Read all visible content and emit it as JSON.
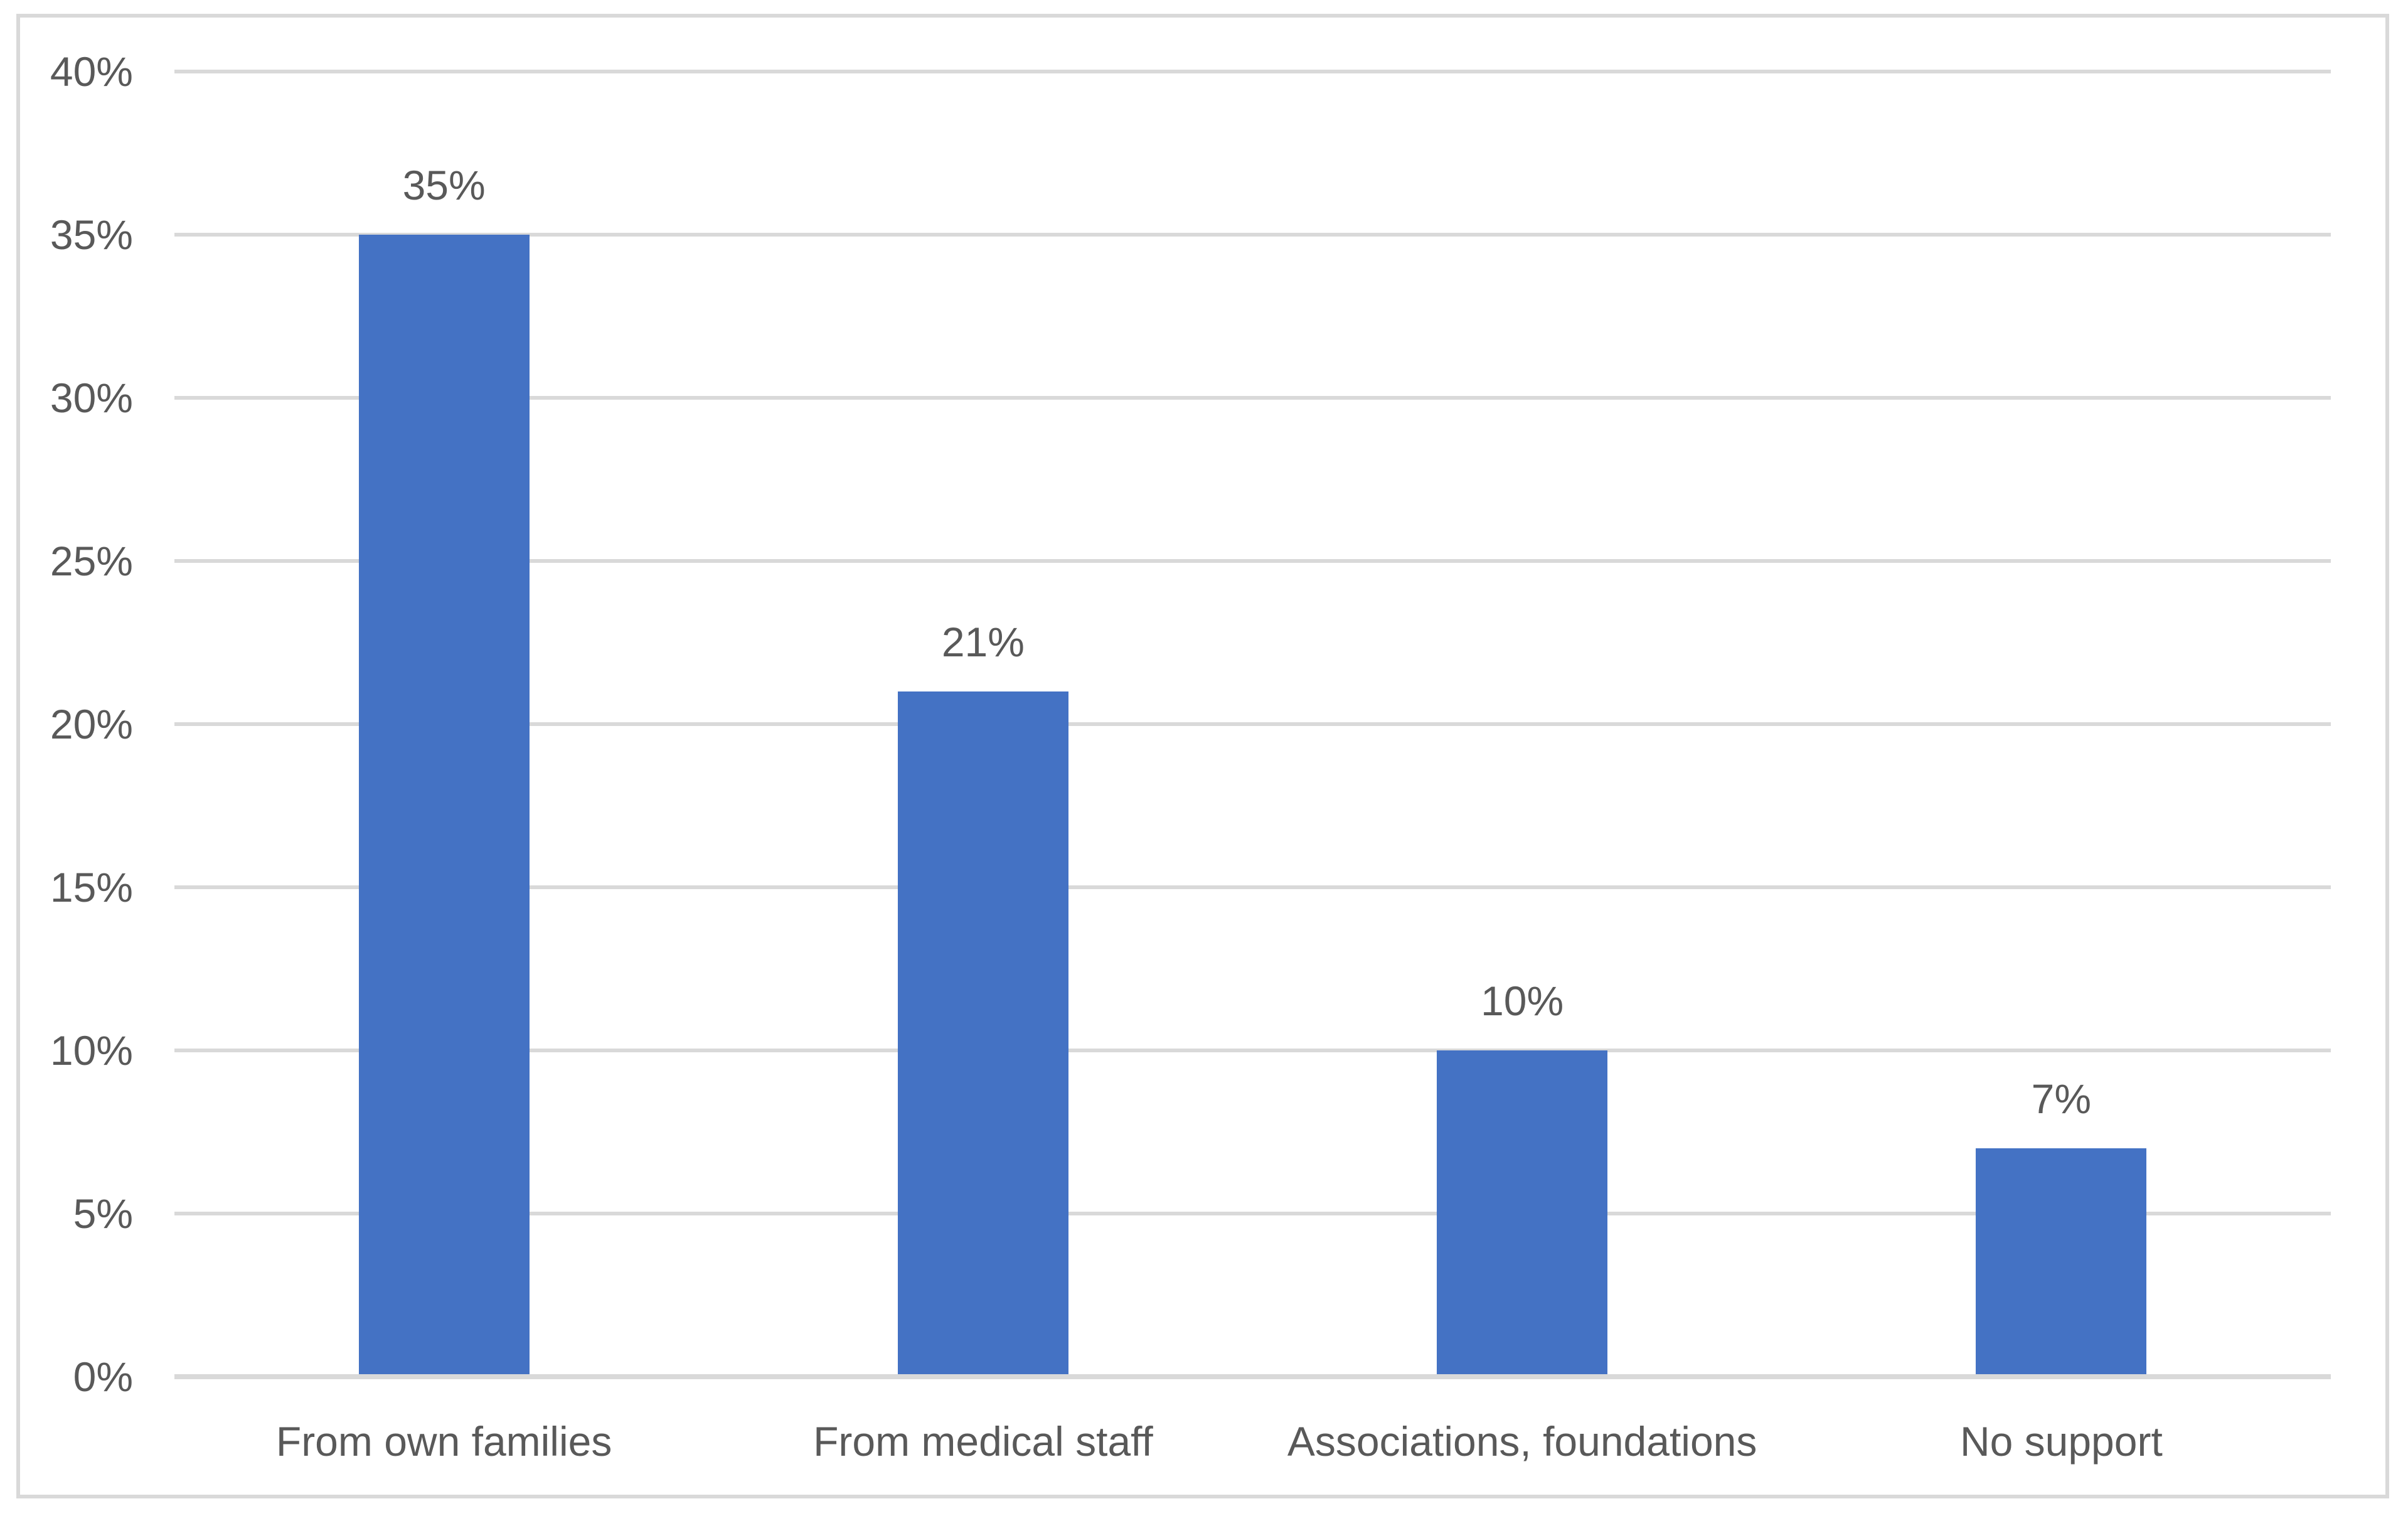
{
  "chart_data": {
    "type": "bar",
    "title": "",
    "xlabel": "",
    "ylabel": "",
    "categories": [
      "From own families",
      "From medical staff",
      "Associations, foundations",
      "No support"
    ],
    "values": [
      35,
      21,
      10,
      7
    ],
    "data_labels": [
      "35%",
      "21%",
      "10%",
      "7%"
    ],
    "yticks": [
      {
        "value": 0,
        "label": "0%"
      },
      {
        "value": 5,
        "label": "5%"
      },
      {
        "value": 10,
        "label": "10%"
      },
      {
        "value": 15,
        "label": "15%"
      },
      {
        "value": 20,
        "label": "20%"
      },
      {
        "value": 25,
        "label": "25%"
      },
      {
        "value": 30,
        "label": "30%"
      },
      {
        "value": 35,
        "label": "35%"
      },
      {
        "value": 40,
        "label": "40%"
      }
    ],
    "ylim": [
      0,
      40
    ],
    "grid": true,
    "legend": false,
    "colors": {
      "bar": "#4472C4",
      "gridline": "#D9D9D9",
      "axis_line": "#D9D9D9",
      "text": "#595959",
      "frame_border": "#D9D9D9",
      "background": "#FFFFFF"
    }
  }
}
